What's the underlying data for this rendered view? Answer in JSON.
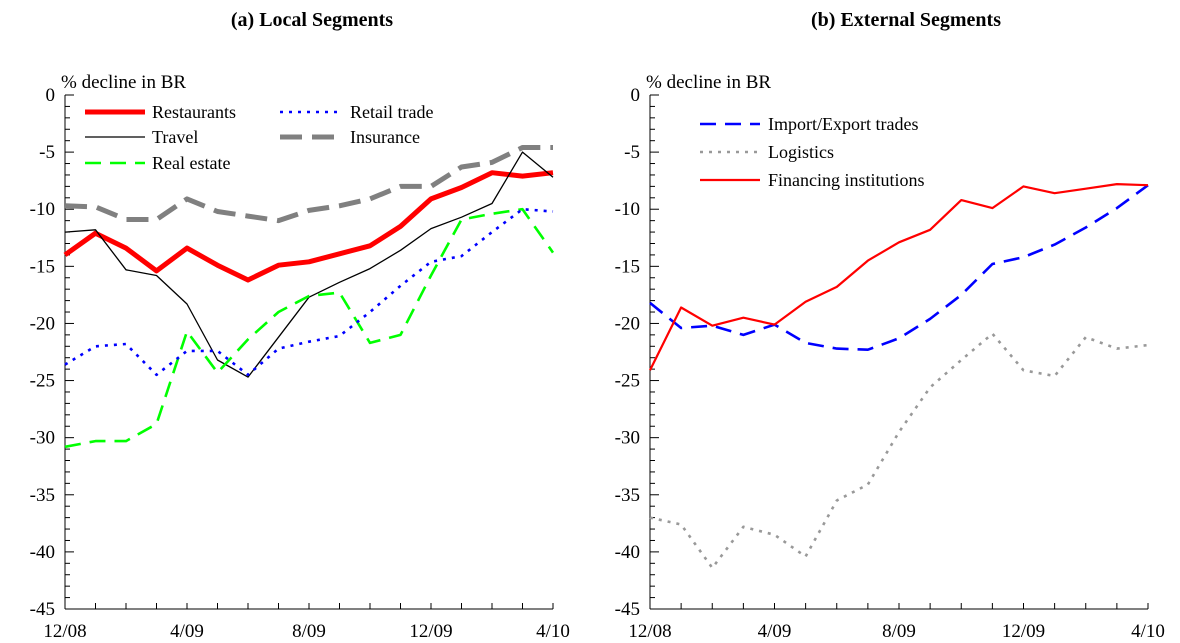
{
  "chart_data": [
    {
      "type": "line",
      "title": "(a) Local Segments",
      "ylabel": "% decline in BR",
      "ylim": [
        -45,
        0
      ],
      "yticks": [
        0,
        -5,
        -10,
        -15,
        -20,
        -25,
        -30,
        -35,
        -40,
        -45
      ],
      "x": [
        "12/08",
        "1/09",
        "2/09",
        "3/09",
        "4/09",
        "5/09",
        "6/09",
        "7/09",
        "8/09",
        "9/09",
        "10/09",
        "11/09",
        "12/09",
        "1/10",
        "2/10",
        "3/10",
        "4/10"
      ],
      "xtick_labels": [
        "12/08",
        "4/09",
        "8/09",
        "12/09",
        "4/10"
      ],
      "legend": "top-left",
      "series": [
        {
          "name": "Restaurants",
          "color": "#ff0000",
          "style": "solid-thick",
          "values": [
            -14.0,
            -12.1,
            -13.4,
            -15.4,
            -13.4,
            -14.9,
            -16.2,
            -14.9,
            -14.6,
            -13.9,
            -13.2,
            -11.5,
            -9.1,
            -8.1,
            -6.8,
            -7.1,
            -6.8
          ]
        },
        {
          "name": "Travel",
          "color": "#000000",
          "style": "solid-thin",
          "values": [
            -12.0,
            -11.8,
            -15.3,
            -15.8,
            -18.3,
            -23.2,
            -24.7,
            -21.2,
            -17.7,
            -16.4,
            -15.2,
            -13.6,
            -11.7,
            -10.7,
            -9.5,
            -5.0,
            -7.2
          ]
        },
        {
          "name": "Real estate",
          "color": "#00ff00",
          "style": "dash",
          "values": [
            -30.8,
            -30.3,
            -30.3,
            -28.8,
            -20.7,
            -24.3,
            -21.4,
            -19.0,
            -17.6,
            -17.3,
            -21.7,
            -21.0,
            -15.8,
            -10.9,
            -10.4,
            -10.0,
            -13.8
          ]
        },
        {
          "name": "Retail trade",
          "color": "#0000ff",
          "style": "dot",
          "values": [
            -23.6,
            -22.0,
            -21.8,
            -24.5,
            -22.4,
            -22.4,
            -24.5,
            -22.2,
            -21.6,
            -21.1,
            -19.0,
            -16.7,
            -14.6,
            -14.1,
            -12.0,
            -10.0,
            -10.2
          ]
        },
        {
          "name": "Insurance",
          "color": "#808080",
          "style": "longdash-thick",
          "values": [
            -9.7,
            -9.8,
            -10.9,
            -10.9,
            -9.1,
            -10.2,
            -10.6,
            -11.0,
            -10.1,
            -9.7,
            -9.1,
            -8.0,
            -8.0,
            -6.3,
            -5.9,
            -4.6,
            -4.6
          ]
        }
      ]
    },
    {
      "type": "line",
      "title": "(b) External Segments",
      "ylabel": "% decline in BR",
      "ylim": [
        -45,
        0
      ],
      "yticks": [
        0,
        -5,
        -10,
        -15,
        -20,
        -25,
        -30,
        -35,
        -40,
        -45
      ],
      "x": [
        "12/08",
        "1/09",
        "2/09",
        "3/09",
        "4/09",
        "5/09",
        "6/09",
        "7/09",
        "8/09",
        "9/09",
        "10/09",
        "11/09",
        "12/09",
        "1/10",
        "2/10",
        "3/10",
        "4/10"
      ],
      "xtick_labels": [
        "12/08",
        "4/09",
        "8/09",
        "12/09",
        "4/10"
      ],
      "legend": "top-left",
      "series": [
        {
          "name": "Import/Export trades",
          "color": "#0000ff",
          "style": "dash",
          "values": [
            -18.2,
            -20.4,
            -20.2,
            -21.0,
            -20.1,
            -21.7,
            -22.2,
            -22.3,
            -21.3,
            -19.6,
            -17.5,
            -14.8,
            -14.2,
            -13.1,
            -11.6,
            -9.9,
            -7.9
          ]
        },
        {
          "name": "Logistics",
          "color": "#999999",
          "style": "dot",
          "values": [
            -37.0,
            -37.6,
            -41.4,
            -37.8,
            -38.5,
            -40.4,
            -35.5,
            -34.1,
            -29.5,
            -25.6,
            -23.2,
            -20.9,
            -24.1,
            -24.6,
            -21.2,
            -22.2,
            -21.9
          ]
        },
        {
          "name": "Financing institutions",
          "color": "#ff0000",
          "style": "solid",
          "values": [
            -24.1,
            -18.6,
            -20.2,
            -19.5,
            -20.1,
            -18.1,
            -16.8,
            -14.5,
            -12.9,
            -11.8,
            -9.2,
            -9.9,
            -8.0,
            -8.6,
            -8.2,
            -7.8,
            -7.9
          ]
        }
      ]
    }
  ]
}
